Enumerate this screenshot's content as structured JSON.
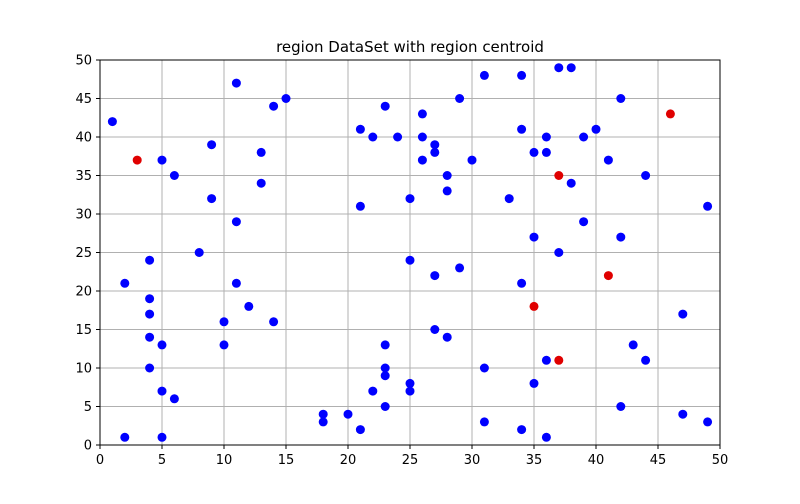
{
  "chart_data": {
    "type": "scatter",
    "title": "region DataSet with region centroid",
    "xlabel": "",
    "ylabel": "",
    "xlim": [
      0,
      50
    ],
    "ylim": [
      0,
      50
    ],
    "x_ticks": [
      0,
      5,
      10,
      15,
      20,
      25,
      30,
      35,
      40,
      45,
      50
    ],
    "y_ticks": [
      0,
      5,
      10,
      15,
      20,
      25,
      30,
      35,
      40,
      45,
      50
    ],
    "grid": true,
    "series": [
      {
        "color": "#0000ff",
        "points": [
          [
            1,
            42
          ],
          [
            2,
            21
          ],
          [
            2,
            1
          ],
          [
            4,
            24
          ],
          [
            4,
            19
          ],
          [
            4,
            17
          ],
          [
            4,
            14
          ],
          [
            4,
            10
          ],
          [
            5,
            37
          ],
          [
            5,
            13
          ],
          [
            5,
            7
          ],
          [
            5,
            1
          ],
          [
            6,
            35
          ],
          [
            6,
            6
          ],
          [
            8,
            25
          ],
          [
            9,
            39
          ],
          [
            9,
            32
          ],
          [
            10,
            16
          ],
          [
            10,
            13
          ],
          [
            11,
            47
          ],
          [
            11,
            29
          ],
          [
            11,
            21
          ],
          [
            12,
            18
          ],
          [
            13,
            38
          ],
          [
            13,
            34
          ],
          [
            14,
            44
          ],
          [
            14,
            16
          ],
          [
            15,
            45
          ],
          [
            18,
            4
          ],
          [
            18,
            3
          ],
          [
            20,
            4
          ],
          [
            21,
            41
          ],
          [
            21,
            31
          ],
          [
            21,
            2
          ],
          [
            22,
            40
          ],
          [
            22,
            7
          ],
          [
            23,
            44
          ],
          [
            23,
            13
          ],
          [
            23,
            10
          ],
          [
            23,
            9
          ],
          [
            23,
            5
          ],
          [
            24,
            40
          ],
          [
            25,
            32
          ],
          [
            25,
            24
          ],
          [
            25,
            8
          ],
          [
            25,
            7
          ],
          [
            26,
            43
          ],
          [
            26,
            40
          ],
          [
            26,
            37
          ],
          [
            27,
            39
          ],
          [
            27,
            38
          ],
          [
            27,
            22
          ],
          [
            27,
            15
          ],
          [
            28,
            35
          ],
          [
            28,
            33
          ],
          [
            28,
            14
          ],
          [
            29,
            45
          ],
          [
            29,
            23
          ],
          [
            30,
            37
          ],
          [
            31,
            48
          ],
          [
            31,
            10
          ],
          [
            31,
            3
          ],
          [
            33,
            32
          ],
          [
            34,
            48
          ],
          [
            34,
            41
          ],
          [
            34,
            21
          ],
          [
            34,
            2
          ],
          [
            35,
            38
          ],
          [
            35,
            27
          ],
          [
            35,
            8
          ],
          [
            36,
            40
          ],
          [
            36,
            38
          ],
          [
            36,
            11
          ],
          [
            36,
            1
          ],
          [
            37,
            49
          ],
          [
            37,
            25
          ],
          [
            38,
            49
          ],
          [
            38,
            34
          ],
          [
            39,
            40
          ],
          [
            39,
            29
          ],
          [
            40,
            41
          ],
          [
            41,
            37
          ],
          [
            42,
            45
          ],
          [
            42,
            27
          ],
          [
            42,
            5
          ],
          [
            43,
            13
          ],
          [
            44,
            35
          ],
          [
            44,
            11
          ],
          [
            47,
            17
          ],
          [
            47,
            4
          ],
          [
            49,
            31
          ],
          [
            49,
            3
          ]
        ]
      },
      {
        "color": "#e00000",
        "points": [
          [
            3,
            37
          ],
          [
            37,
            35
          ],
          [
            46,
            43
          ],
          [
            41,
            22
          ],
          [
            35,
            18
          ],
          [
            37,
            11
          ]
        ]
      }
    ]
  }
}
